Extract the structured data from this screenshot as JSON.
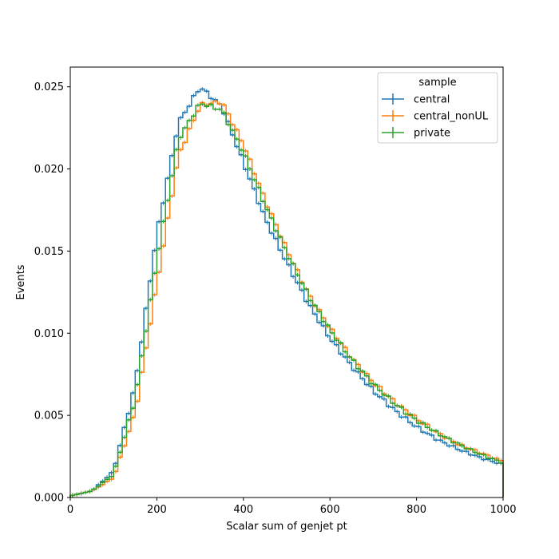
{
  "chart_data": {
    "type": "line",
    "style": "step-histogram",
    "xlabel": "Scalar sum of genjet pt",
    "ylabel": "Events",
    "xlim": [
      0,
      1000
    ],
    "ylim": [
      0,
      0.0262
    ],
    "x_ticks": [
      0,
      200,
      400,
      600,
      800,
      1000
    ],
    "y_ticks": [
      0.0,
      0.005,
      0.01,
      0.015,
      0.02,
      0.025
    ],
    "y_tick_labels": [
      "0.000",
      "0.005",
      "0.010",
      "0.015",
      "0.020",
      "0.025"
    ],
    "grid": false,
    "legend": {
      "title": "sample",
      "placement": "top-right"
    },
    "x": [
      0,
      50,
      100,
      150,
      200,
      250,
      300,
      350,
      400,
      450,
      500,
      550,
      600,
      650,
      700,
      750,
      800,
      850,
      900,
      950,
      1000
    ],
    "series": [
      {
        "name": "central",
        "color": "#1f77b4",
        "values": [
          0.0001,
          0.0004,
          0.0016,
          0.0068,
          0.016,
          0.0228,
          0.025,
          0.0238,
          0.0204,
          0.017,
          0.0143,
          0.0118,
          0.0097,
          0.008,
          0.0065,
          0.0053,
          0.0043,
          0.0035,
          0.0029,
          0.0024,
          0.002
        ]
      },
      {
        "name": "central_nonUL",
        "color": "#ff7f0e",
        "values": [
          0.0001,
          0.0004,
          0.0012,
          0.0052,
          0.013,
          0.0208,
          0.0239,
          0.0241,
          0.0215,
          0.0181,
          0.0151,
          0.0124,
          0.0103,
          0.0085,
          0.007,
          0.0058,
          0.0048,
          0.0039,
          0.0032,
          0.0027,
          0.0022
        ]
      },
      {
        "name": "private",
        "color": "#2ca02c",
        "values": [
          0.0001,
          0.0004,
          0.0014,
          0.006,
          0.0145,
          0.0218,
          0.024,
          0.0236,
          0.021,
          0.0178,
          0.0149,
          0.0123,
          0.0102,
          0.0084,
          0.0069,
          0.0057,
          0.0047,
          0.0039,
          0.0032,
          0.0026,
          0.0021
        ]
      }
    ]
  }
}
